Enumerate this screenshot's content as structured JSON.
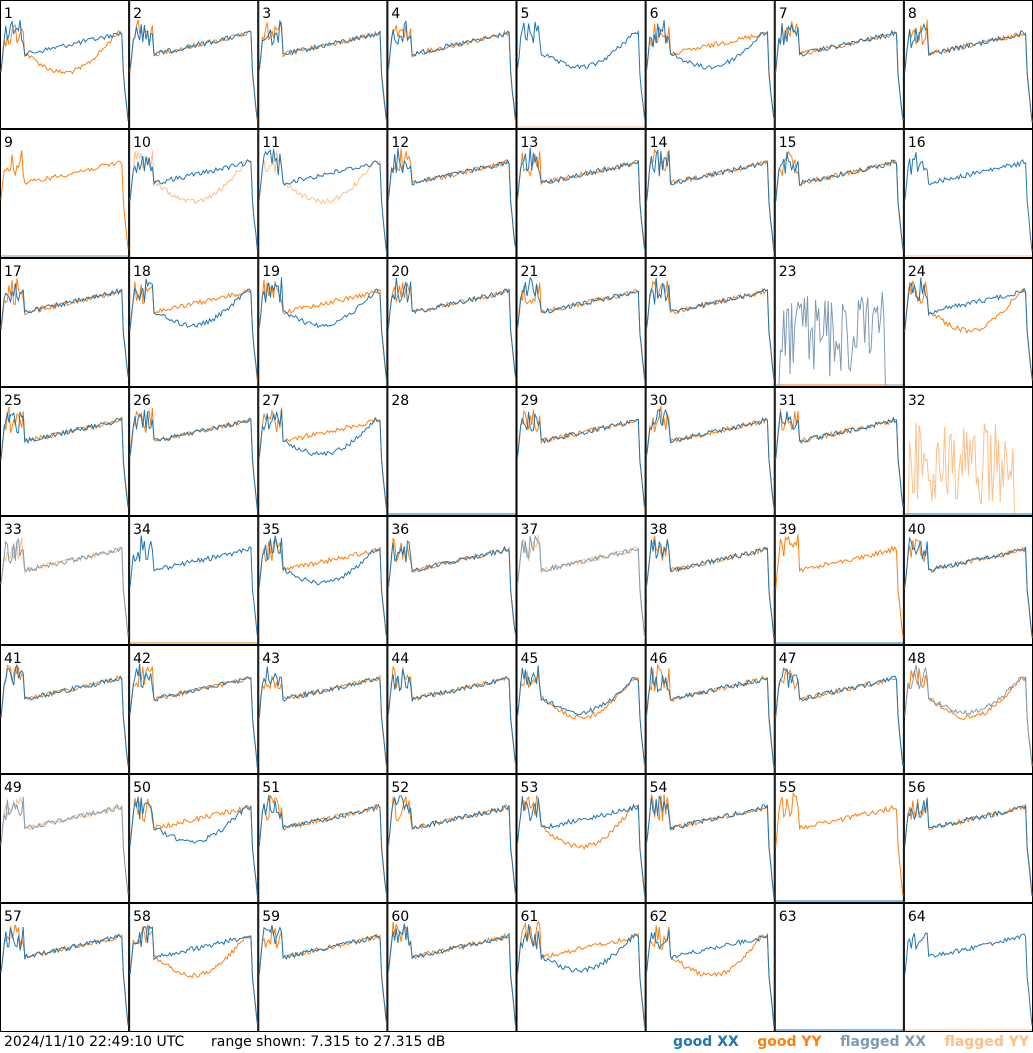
{
  "timestamp": "2024/11/10 22:49:10 UTC",
  "range_text": "range shown: 7.315 to 27.315 dB",
  "legend": [
    {
      "label": "good XX",
      "color": "#1f77b4"
    },
    {
      "label": "good YY",
      "color": "#ff7f0e"
    },
    {
      "label": "flagged XX",
      "color": "#7f9bb3"
    },
    {
      "label": "flagged YY",
      "color": "#ffbf87"
    }
  ],
  "chart_data": {
    "type": "line",
    "layout": "8x8 small multiples",
    "ylim": [
      7.315,
      27.315
    ],
    "colors": {
      "good_xx": "#1f77b4",
      "good_yy": "#ff7f0e",
      "flagged_xx": "#7f9bb3",
      "flagged_yy": "#ffbf87"
    },
    "panels": [
      {
        "id": "1",
        "xx": "good",
        "yy": "good",
        "xx_shape": "bandpass",
        "yy_shape": "dip"
      },
      {
        "id": "2",
        "xx": "good",
        "yy": "good",
        "xx_shape": "bandpass",
        "yy_shape": "bandpass"
      },
      {
        "id": "3",
        "xx": "good",
        "yy": "good",
        "xx_shape": "bandpass",
        "yy_shape": "bandpass"
      },
      {
        "id": "4",
        "xx": "good",
        "yy": "good",
        "xx_shape": "bandpass",
        "yy_shape": "bandpass"
      },
      {
        "id": "5",
        "xx": "good",
        "yy": "flagged",
        "xx_shape": "dip",
        "yy_shape": "dead"
      },
      {
        "id": "6",
        "xx": "good",
        "yy": "good",
        "xx_shape": "dip",
        "yy_shape": "bandpass"
      },
      {
        "id": "7",
        "xx": "good",
        "yy": "good",
        "xx_shape": "bandpass",
        "yy_shape": "bandpass"
      },
      {
        "id": "8",
        "xx": "good",
        "yy": "good",
        "xx_shape": "bandpass",
        "yy_shape": "bandpass"
      },
      {
        "id": "9",
        "xx": "flagged",
        "yy": "good",
        "xx_shape": "dead",
        "yy_shape": "bandpass"
      },
      {
        "id": "10",
        "xx": "good",
        "yy": "flagged",
        "xx_shape": "bandpass",
        "yy_shape": "dip"
      },
      {
        "id": "11",
        "xx": "good",
        "yy": "flagged",
        "xx_shape": "bandpass",
        "yy_shape": "dip"
      },
      {
        "id": "12",
        "xx": "good",
        "yy": "good",
        "xx_shape": "bandpass",
        "yy_shape": "bandpass"
      },
      {
        "id": "13",
        "xx": "good",
        "yy": "good",
        "xx_shape": "bandpass",
        "yy_shape": "bandpass"
      },
      {
        "id": "14",
        "xx": "good",
        "yy": "good",
        "xx_shape": "bandpass",
        "yy_shape": "bandpass"
      },
      {
        "id": "15",
        "xx": "good",
        "yy": "good",
        "xx_shape": "bandpass",
        "yy_shape": "bandpass"
      },
      {
        "id": "16",
        "xx": "good",
        "yy": "flagged",
        "xx_shape": "bandpass",
        "yy_shape": "dead"
      },
      {
        "id": "17",
        "xx": "good",
        "yy": "good",
        "xx_shape": "bandpass",
        "yy_shape": "bandpass"
      },
      {
        "id": "18",
        "xx": "good",
        "yy": "good",
        "xx_shape": "dip",
        "yy_shape": "bandpass"
      },
      {
        "id": "19",
        "xx": "good",
        "yy": "good",
        "xx_shape": "dip",
        "yy_shape": "bandpass"
      },
      {
        "id": "20",
        "xx": "good",
        "yy": "good",
        "xx_shape": "bandpass",
        "yy_shape": "bandpass"
      },
      {
        "id": "21",
        "xx": "good",
        "yy": "good",
        "xx_shape": "bandpass",
        "yy_shape": "bandpass"
      },
      {
        "id": "22",
        "xx": "good",
        "yy": "good",
        "xx_shape": "bandpass",
        "yy_shape": "bandpass"
      },
      {
        "id": "23",
        "xx": "flagged",
        "yy": "good",
        "xx_shape": "noise",
        "yy_shape": "dead"
      },
      {
        "id": "24",
        "xx": "good",
        "yy": "good",
        "xx_shape": "bandpass",
        "yy_shape": "dip"
      },
      {
        "id": "25",
        "xx": "good",
        "yy": "good",
        "xx_shape": "bandpass",
        "yy_shape": "bandpass"
      },
      {
        "id": "26",
        "xx": "good",
        "yy": "good",
        "xx_shape": "bandpass",
        "yy_shape": "bandpass"
      },
      {
        "id": "27",
        "xx": "good",
        "yy": "good",
        "xx_shape": "dip",
        "yy_shape": "bandpass"
      },
      {
        "id": "28",
        "xx": "good",
        "yy": "good",
        "xx_shape": "dead",
        "yy_shape": "dead"
      },
      {
        "id": "29",
        "xx": "good",
        "yy": "good",
        "xx_shape": "bandpass",
        "yy_shape": "bandpass"
      },
      {
        "id": "30",
        "xx": "good",
        "yy": "good",
        "xx_shape": "bandpass",
        "yy_shape": "bandpass"
      },
      {
        "id": "31",
        "xx": "good",
        "yy": "good",
        "xx_shape": "bandpass",
        "yy_shape": "bandpass"
      },
      {
        "id": "32",
        "xx": "good",
        "yy": "flagged",
        "xx_shape": "dead",
        "yy_shape": "noise"
      },
      {
        "id": "33",
        "xx": "flagged",
        "yy": "flagged",
        "xx_shape": "bandpass",
        "yy_shape": "bandpass"
      },
      {
        "id": "34",
        "xx": "good",
        "yy": "good",
        "xx_shape": "bandpass",
        "yy_shape": "dead"
      },
      {
        "id": "35",
        "xx": "good",
        "yy": "good",
        "xx_shape": "dip",
        "yy_shape": "bandpass"
      },
      {
        "id": "36",
        "xx": "good",
        "yy": "good",
        "xx_shape": "bandpass",
        "yy_shape": "bandpass"
      },
      {
        "id": "37",
        "xx": "flagged",
        "yy": "flagged",
        "xx_shape": "bandpass",
        "yy_shape": "bandpass"
      },
      {
        "id": "38",
        "xx": "good",
        "yy": "good",
        "xx_shape": "bandpass",
        "yy_shape": "bandpass"
      },
      {
        "id": "39",
        "xx": "good",
        "yy": "good",
        "xx_shape": "dead",
        "yy_shape": "bandpass"
      },
      {
        "id": "40",
        "xx": "good",
        "yy": "good",
        "xx_shape": "bandpass",
        "yy_shape": "bandpass"
      },
      {
        "id": "41",
        "xx": "good",
        "yy": "good",
        "xx_shape": "bandpass",
        "yy_shape": "bandpass"
      },
      {
        "id": "42",
        "xx": "good",
        "yy": "good",
        "xx_shape": "bandpass",
        "yy_shape": "bandpass"
      },
      {
        "id": "43",
        "xx": "good",
        "yy": "good",
        "xx_shape": "bandpass",
        "yy_shape": "bandpass"
      },
      {
        "id": "44",
        "xx": "good",
        "yy": "good",
        "xx_shape": "bandpass",
        "yy_shape": "bandpass"
      },
      {
        "id": "45",
        "xx": "good",
        "yy": "good",
        "xx_shape": "dip",
        "yy_shape": "dip"
      },
      {
        "id": "46",
        "xx": "good",
        "yy": "good",
        "xx_shape": "bandpass",
        "yy_shape": "bandpass"
      },
      {
        "id": "47",
        "xx": "good",
        "yy": "good",
        "xx_shape": "bandpass",
        "yy_shape": "bandpass"
      },
      {
        "id": "48",
        "xx": "flagged",
        "yy": "good",
        "xx_shape": "dip",
        "yy_shape": "dip"
      },
      {
        "id": "49",
        "xx": "flagged",
        "yy": "flagged",
        "xx_shape": "bandpass",
        "yy_shape": "bandpass"
      },
      {
        "id": "50",
        "xx": "good",
        "yy": "good",
        "xx_shape": "dip",
        "yy_shape": "bandpass"
      },
      {
        "id": "51",
        "xx": "good",
        "yy": "good",
        "xx_shape": "bandpass",
        "yy_shape": "bandpass"
      },
      {
        "id": "52",
        "xx": "good",
        "yy": "good",
        "xx_shape": "bandpass",
        "yy_shape": "bandpass"
      },
      {
        "id": "53",
        "xx": "good",
        "yy": "good",
        "xx_shape": "bandpass",
        "yy_shape": "dip"
      },
      {
        "id": "54",
        "xx": "good",
        "yy": "good",
        "xx_shape": "bandpass",
        "yy_shape": "bandpass"
      },
      {
        "id": "55",
        "xx": "good",
        "yy": "good",
        "xx_shape": "dead",
        "yy_shape": "bandpass"
      },
      {
        "id": "56",
        "xx": "good",
        "yy": "good",
        "xx_shape": "bandpass",
        "yy_shape": "bandpass"
      },
      {
        "id": "57",
        "xx": "good",
        "yy": "good",
        "xx_shape": "bandpass",
        "yy_shape": "bandpass"
      },
      {
        "id": "58",
        "xx": "good",
        "yy": "good",
        "xx_shape": "bandpass",
        "yy_shape": "dip"
      },
      {
        "id": "59",
        "xx": "good",
        "yy": "good",
        "xx_shape": "bandpass",
        "yy_shape": "bandpass"
      },
      {
        "id": "60",
        "xx": "good",
        "yy": "good",
        "xx_shape": "bandpass",
        "yy_shape": "bandpass"
      },
      {
        "id": "61",
        "xx": "good",
        "yy": "good",
        "xx_shape": "dip",
        "yy_shape": "bandpass"
      },
      {
        "id": "62",
        "xx": "good",
        "yy": "good",
        "xx_shape": "bandpass",
        "yy_shape": "dip"
      },
      {
        "id": "63",
        "xx": "good",
        "yy": "good",
        "xx_shape": "dead",
        "yy_shape": "dead"
      },
      {
        "id": "64",
        "xx": "good",
        "yy": "flagged",
        "xx_shape": "bandpass",
        "yy_shape": "dead"
      }
    ]
  }
}
